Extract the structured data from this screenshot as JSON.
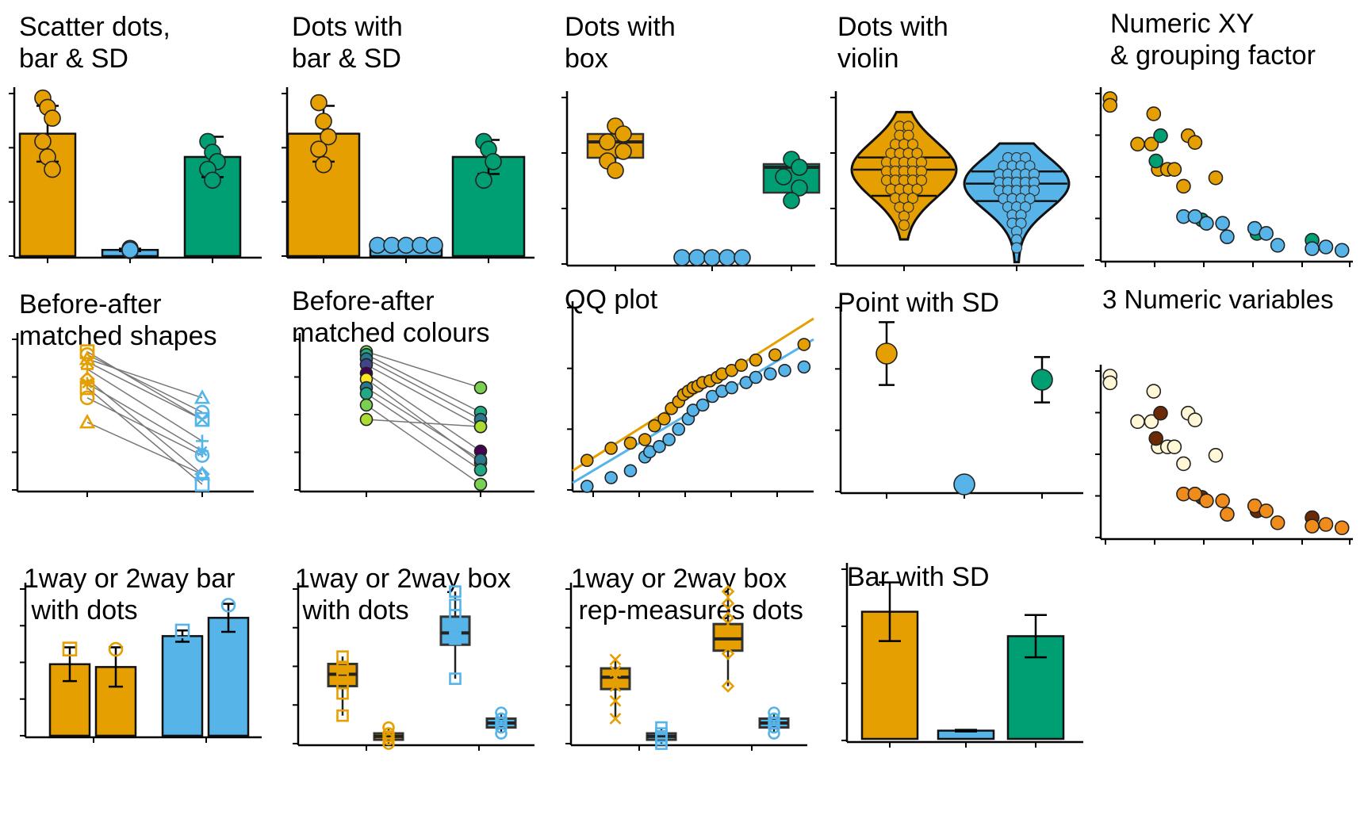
{
  "colors": {
    "orange": "#E69F00",
    "blue": "#56B4E9",
    "green": "#009E73",
    "dark": "#222222",
    "grey": "#7a7a7a"
  },
  "panels": [
    {
      "id": "scatter-bar-sd",
      "title": "Scatter dots,\nbar & SD"
    },
    {
      "id": "dots-bar-sd",
      "title": "Dots with\nbar & SD"
    },
    {
      "id": "dots-box",
      "title": "Dots with\nbox"
    },
    {
      "id": "dots-violin",
      "title": "Dots with\nviolin"
    },
    {
      "id": "numeric-xy-grouping",
      "title": "Numeric XY\n& grouping factor"
    },
    {
      "id": "before-after-shapes",
      "title": "Before-after\nmatched shapes"
    },
    {
      "id": "before-after-colours",
      "title": "Before-after\nmatched colours"
    },
    {
      "id": "qq-plot",
      "title": "QQ plot"
    },
    {
      "id": "point-sd",
      "title": "Point with SD"
    },
    {
      "id": "three-numeric",
      "title": "3 Numeric variables"
    },
    {
      "id": "bar-dots-1way-2way",
      "title": "1way or 2way bar\n with dots"
    },
    {
      "id": "box-dots-1way-2way",
      "title": "1way or 2way box\n with dots"
    },
    {
      "id": "box-repmeasures",
      "title": "1way or 2way box\n rep-measures dots"
    },
    {
      "id": "bar-sd",
      "title": "Bar with SD"
    }
  ],
  "chart_data": [
    {
      "id": "scatter-bar-sd",
      "type": "bar",
      "ylim": [
        0,
        110
      ],
      "grid": false,
      "categories": [
        "",
        "",
        ""
      ],
      "colors": [
        "orange",
        "blue",
        "green"
      ],
      "values": [
        80,
        5,
        65
      ],
      "sd": [
        18,
        0.8,
        13
      ],
      "points": [
        [
          103,
          97,
          90,
          75,
          65,
          57
        ],
        [
          6,
          5,
          5,
          4.5,
          5
        ],
        [
          75,
          68,
          62,
          57,
          50
        ]
      ]
    },
    {
      "id": "dots-bar-sd",
      "type": "bar",
      "ylim": [
        0,
        110
      ],
      "grid": false,
      "categories": [
        "",
        "",
        ""
      ],
      "colors": [
        "orange",
        "blue",
        "green"
      ],
      "values": [
        80,
        8,
        65
      ],
      "sd": [
        18,
        0.6,
        11
      ],
      "points": [
        [
          100,
          88,
          78,
          70,
          60
        ],
        [
          8,
          8,
          8,
          8,
          8
        ],
        [
          75,
          70,
          62,
          50
        ]
      ]
    },
    {
      "id": "dots-box",
      "type": "box",
      "ylim": [
        0,
        110
      ],
      "grid": false,
      "categories": [
        "",
        "",
        ""
      ],
      "colors": [
        "orange",
        "blue",
        "green"
      ],
      "boxes": [
        {
          "q1": 68,
          "median": 78,
          "q3": 83,
          "min": 60,
          "max": 88
        },
        {
          "q1": 5,
          "median": 5,
          "q3": 5,
          "min": 5,
          "max": 5
        },
        {
          "q1": 46,
          "median": 62,
          "q3": 64,
          "min": 41,
          "max": 67
        }
      ],
      "points": [
        [
          88,
          83,
          78,
          72,
          66,
          60
        ],
        [
          5,
          5,
          5,
          5,
          5
        ],
        [
          67,
          62,
          56,
          49,
          41
        ]
      ]
    },
    {
      "id": "dots-violin",
      "type": "violin",
      "ylim": [
        0,
        100
      ],
      "grid": false,
      "categories": [
        "",
        ""
      ],
      "colors": [
        "orange",
        "blue"
      ],
      "violins": [
        {
          "min": 15,
          "max": 88,
          "q1": 40,
          "median": 55,
          "q3": 62
        },
        {
          "min": 2,
          "max": 70,
          "q1": 37,
          "median": 47,
          "q3": 54
        }
      ]
    },
    {
      "id": "numeric-xy-grouping",
      "type": "scatter",
      "xlim": [
        0,
        10
      ],
      "ylim": [
        0,
        10
      ],
      "grid": false,
      "series": [
        {
          "color": "orange",
          "points": [
            [
              0.2,
              9.2
            ],
            [
              0.2,
              8.8
            ],
            [
              2.1,
              8.3
            ],
            [
              1.4,
              6.5
            ],
            [
              2.0,
              6.5
            ],
            [
              3.6,
              7.0
            ],
            [
              3.9,
              6.6
            ],
            [
              2.3,
              5.0
            ],
            [
              2.7,
              5.0
            ],
            [
              3.0,
              5.0
            ],
            [
              3.4,
              4.0
            ],
            [
              4.8,
              4.5
            ]
          ]
        },
        {
          "color": "green",
          "points": [
            [
              2.4,
              7.0
            ],
            [
              2.2,
              5.5
            ],
            [
              4.2,
              2.0
            ],
            [
              6.6,
              1.2
            ],
            [
              9.0,
              0.8
            ]
          ]
        },
        {
          "color": "blue",
          "points": [
            [
              3.4,
              2.2
            ],
            [
              3.9,
              2.2
            ],
            [
              4.4,
              1.8
            ],
            [
              5.1,
              1.8
            ],
            [
              5.3,
              1.0
            ],
            [
              6.5,
              1.5
            ],
            [
              7.0,
              1.2
            ],
            [
              7.5,
              0.5
            ],
            [
              9.0,
              0.3
            ],
            [
              9.6,
              0.4
            ],
            [
              10.3,
              0.2
            ]
          ]
        }
      ]
    },
    {
      "id": "before-after-shapes",
      "type": "line",
      "ylim": [
        0,
        110
      ],
      "grid": false,
      "categories": [
        "",
        ""
      ],
      "colors": [
        "orange",
        "blue"
      ],
      "pairs": [
        [
          97,
          50
        ],
        [
          95,
          55
        ],
        [
          92,
          65
        ],
        [
          90,
          50
        ],
        [
          85,
          35
        ],
        [
          78,
          12
        ],
        [
          75,
          28
        ],
        [
          72,
          5
        ],
        [
          65,
          25
        ],
        [
          48,
          12
        ]
      ],
      "markers": [
        "square",
        "circle",
        "triangle",
        "x",
        "plus",
        "diamond",
        "asterisk",
        "square",
        "circle",
        "triangle"
      ]
    },
    {
      "id": "before-after-colours",
      "type": "line",
      "ylim": [
        0,
        110
      ],
      "grid": false,
      "categories": [
        "",
        ""
      ],
      "pairs": [
        [
          97,
          72
        ],
        [
          95,
          55
        ],
        [
          92,
          50
        ],
        [
          88,
          45
        ],
        [
          82,
          28
        ],
        [
          78,
          20
        ],
        [
          72,
          22
        ],
        [
          68,
          15
        ],
        [
          60,
          5
        ],
        [
          50,
          45
        ]
      ],
      "pair_colors": [
        "#7AD151",
        "#22A884",
        "#2A788E",
        "#414487",
        "#440154",
        "#FDE725",
        "#2A788E",
        "#22A884",
        "#7AD151",
        "#AADC32"
      ]
    },
    {
      "id": "qq-plot",
      "type": "scatter",
      "xlim": [
        -2.5,
        2.5
      ],
      "ylim": [
        0,
        110
      ],
      "grid": false,
      "lines": [
        {
          "color": "orange",
          "from": [
            -2.5,
            12
          ],
          "to": [
            2.5,
            100
          ]
        },
        {
          "color": "blue",
          "from": [
            -2.5,
            5
          ],
          "to": [
            2.5,
            88
          ]
        }
      ],
      "series": [
        {
          "color": "orange",
          "points": [
            [
              -2.2,
              18
            ],
            [
              -1.7,
              25
            ],
            [
              -1.3,
              28
            ],
            [
              -1.0,
              30
            ],
            [
              -0.8,
              38
            ],
            [
              -0.6,
              42
            ],
            [
              -0.45,
              48
            ],
            [
              -0.3,
              52
            ],
            [
              -0.2,
              56
            ],
            [
              -0.1,
              58
            ],
            [
              0.0,
              60
            ],
            [
              0.1,
              61
            ],
            [
              0.2,
              63
            ],
            [
              0.35,
              64
            ],
            [
              0.5,
              66
            ],
            [
              0.6,
              68
            ],
            [
              0.8,
              70
            ],
            [
              1.0,
              73
            ],
            [
              1.3,
              76
            ],
            [
              1.7,
              79
            ],
            [
              2.3,
              85
            ]
          ]
        },
        {
          "color": "blue",
          "points": [
            [
              -2.2,
              3
            ],
            [
              -1.7,
              8
            ],
            [
              -1.3,
              12
            ],
            [
              -1.0,
              20
            ],
            [
              -0.9,
              23
            ],
            [
              -0.7,
              26
            ],
            [
              -0.5,
              30
            ],
            [
              -0.3,
              36
            ],
            [
              -0.1,
              42
            ],
            [
              0.0,
              47
            ],
            [
              0.2,
              50
            ],
            [
              0.4,
              55
            ],
            [
              0.6,
              58
            ],
            [
              0.8,
              60
            ],
            [
              1.1,
              63
            ],
            [
              1.3,
              66
            ],
            [
              1.6,
              68
            ],
            [
              1.9,
              70
            ],
            [
              2.3,
              72
            ]
          ]
        }
      ]
    },
    {
      "id": "point-sd",
      "type": "scatter",
      "ylim": [
        0,
        110
      ],
      "grid": false,
      "categories": [
        "",
        "",
        ""
      ],
      "colors": [
        "orange",
        "blue",
        "green"
      ],
      "values": [
        80,
        5,
        65
      ],
      "sd": [
        18,
        0.5,
        13
      ]
    },
    {
      "id": "three-numeric",
      "type": "scatter",
      "xlim": [
        0,
        10
      ],
      "ylim": [
        0,
        10
      ],
      "grid": false,
      "series": [
        {
          "color": "#FFF7D6",
          "points": [
            [
              0.2,
              9.2
            ],
            [
              0.2,
              8.8
            ],
            [
              2.1,
              8.3
            ],
            [
              1.4,
              6.5
            ],
            [
              2.0,
              6.5
            ],
            [
              3.6,
              7.0
            ],
            [
              3.9,
              6.6
            ],
            [
              2.3,
              5.0
            ],
            [
              2.7,
              5.0
            ],
            [
              3.0,
              5.0
            ],
            [
              3.4,
              4.0
            ],
            [
              4.8,
              4.5
            ]
          ]
        },
        {
          "color": "#6B2A05",
          "points": [
            [
              2.4,
              7.0
            ],
            [
              2.2,
              5.5
            ],
            [
              4.2,
              2.0
            ],
            [
              6.6,
              1.2
            ],
            [
              9.0,
              0.8
            ]
          ]
        },
        {
          "color": "#F08C1C",
          "points": [
            [
              3.4,
              2.2
            ],
            [
              3.9,
              2.2
            ],
            [
              4.4,
              1.8
            ],
            [
              5.1,
              1.8
            ],
            [
              5.3,
              1.0
            ],
            [
              6.5,
              1.5
            ],
            [
              7.0,
              1.2
            ],
            [
              7.5,
              0.5
            ],
            [
              9.0,
              0.3
            ],
            [
              9.6,
              0.4
            ],
            [
              10.3,
              0.2
            ]
          ]
        }
      ]
    },
    {
      "id": "bar-dots-1way-2way",
      "type": "bar",
      "ylim": [
        0,
        110
      ],
      "grid": false,
      "categories": [
        "",
        ""
      ],
      "bars": [
        {
          "group": 0,
          "color": "orange",
          "value": 52,
          "sd": 12,
          "marker": "square"
        },
        {
          "group": 0,
          "color": "orange",
          "value": 50,
          "sd": 14,
          "marker": "circle"
        },
        {
          "group": 1,
          "color": "blue",
          "value": 72,
          "sd": 4,
          "marker": "square"
        },
        {
          "group": 1,
          "color": "blue",
          "value": 85,
          "sd": 10,
          "marker": "circle"
        }
      ]
    },
    {
      "id": "box-dots-1way-2way",
      "type": "box",
      "ylim": [
        0,
        110
      ],
      "grid": false,
      "categories": [
        "",
        ""
      ],
      "boxes": [
        {
          "group": 0,
          "color": "orange",
          "q1": 40,
          "median": 48,
          "q3": 55,
          "min": 20,
          "max": 60
        },
        {
          "group": 0,
          "color": "orange",
          "q1": 4,
          "median": 6,
          "q3": 8,
          "min": 0,
          "max": 12
        },
        {
          "group": 1,
          "color": "blue",
          "q1": 68,
          "median": 76,
          "q3": 87,
          "min": 45,
          "max": 104
        },
        {
          "group": 1,
          "color": "blue",
          "q1": 12,
          "median": 15,
          "q3": 18,
          "min": 8,
          "max": 22
        }
      ],
      "points": [
        [
          60,
          52,
          48,
          42,
          35,
          20
        ],
        [
          12,
          8,
          6,
          4,
          1
        ],
        [
          104,
          95,
          88,
          80,
          72,
          45
        ],
        [
          22,
          18,
          15,
          12,
          8
        ]
      ],
      "markers": [
        "square",
        "circle",
        "square",
        "circle"
      ]
    },
    {
      "id": "box-repmeasures",
      "type": "box",
      "ylim": [
        0,
        110
      ],
      "grid": false,
      "categories": [
        "",
        ""
      ],
      "boxes": [
        {
          "group": 0,
          "color": "orange",
          "q1": 38,
          "median": 46,
          "q3": 52,
          "min": 18,
          "max": 58
        },
        {
          "group": 0,
          "color": "blue",
          "q1": 4,
          "median": 6,
          "q3": 8,
          "min": 0,
          "max": 12
        },
        {
          "group": 1,
          "color": "orange",
          "q1": 64,
          "median": 72,
          "q3": 82,
          "min": 40,
          "max": 104
        },
        {
          "group": 1,
          "color": "blue",
          "q1": 12,
          "median": 15,
          "q3": 18,
          "min": 8,
          "max": 22
        }
      ],
      "points": [
        [
          58,
          50,
          46,
          40,
          30,
          18
        ],
        [
          12,
          8,
          6,
          4,
          1
        ],
        [
          104,
          96,
          86,
          78,
          62,
          40
        ],
        [
          22,
          18,
          15,
          12,
          8
        ]
      ],
      "markers": [
        "x",
        "square",
        "diamond",
        "circle"
      ]
    },
    {
      "id": "bar-sd",
      "type": "bar",
      "ylim": [
        0,
        110
      ],
      "grid": false,
      "categories": [
        "",
        "",
        ""
      ],
      "colors": [
        "orange",
        "blue",
        "green"
      ],
      "values": [
        80,
        7,
        65
      ],
      "sd": [
        18,
        0.5,
        13
      ]
    }
  ]
}
